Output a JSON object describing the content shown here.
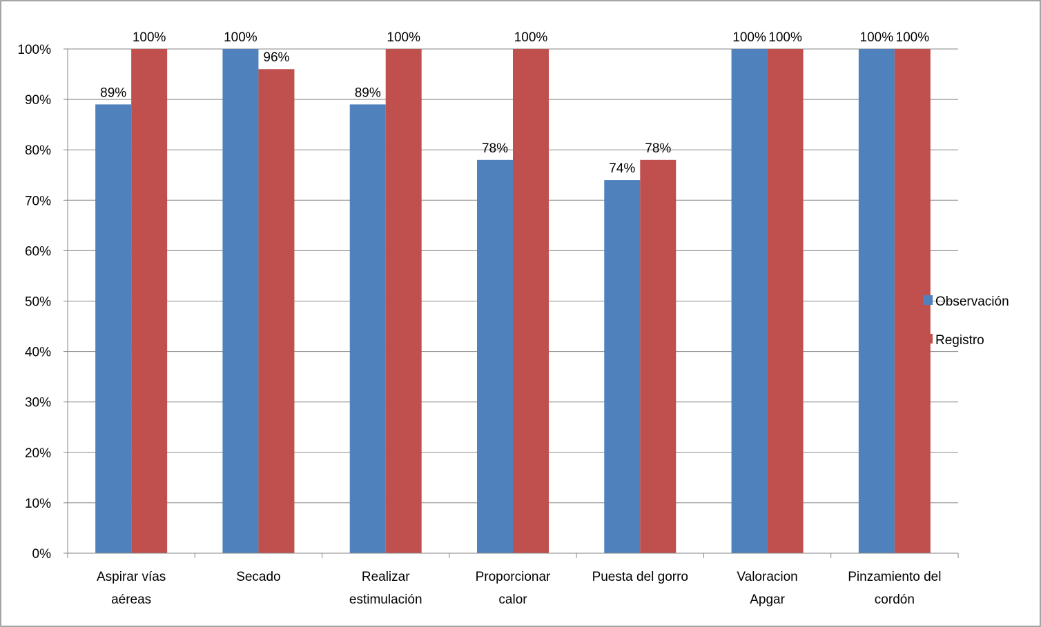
{
  "chart_data": {
    "type": "bar",
    "categories": [
      [
        "Aspirar vías",
        "aéreas"
      ],
      [
        "Secado"
      ],
      [
        "Realizar",
        "estimulación"
      ],
      [
        "Proporcionar",
        "calor"
      ],
      [
        "Puesta del gorro"
      ],
      [
        "Valoracion",
        "Apgar"
      ],
      [
        "Pinzamiento del",
        "cordón"
      ]
    ],
    "series": [
      {
        "name": "Observación",
        "color": "#4F81BD",
        "values": [
          89,
          100,
          89,
          78,
          74,
          100,
          100
        ],
        "labels": [
          "89%",
          "100%",
          "89%",
          "78%",
          "74%",
          "100%",
          "100%"
        ]
      },
      {
        "name": "Registro",
        "color": "#C0504D",
        "values": [
          100,
          96,
          100,
          100,
          78,
          100,
          100
        ],
        "labels": [
          "100%",
          "96%",
          "100%",
          "100%",
          "78%",
          "100%",
          "100%"
        ]
      }
    ],
    "ylim": [
      0,
      100
    ],
    "yticks": [
      "0%",
      "10%",
      "20%",
      "30%",
      "40%",
      "50%",
      "60%",
      "70%",
      "80%",
      "90%",
      "100%"
    ],
    "grid": true,
    "legend_position": "right"
  }
}
